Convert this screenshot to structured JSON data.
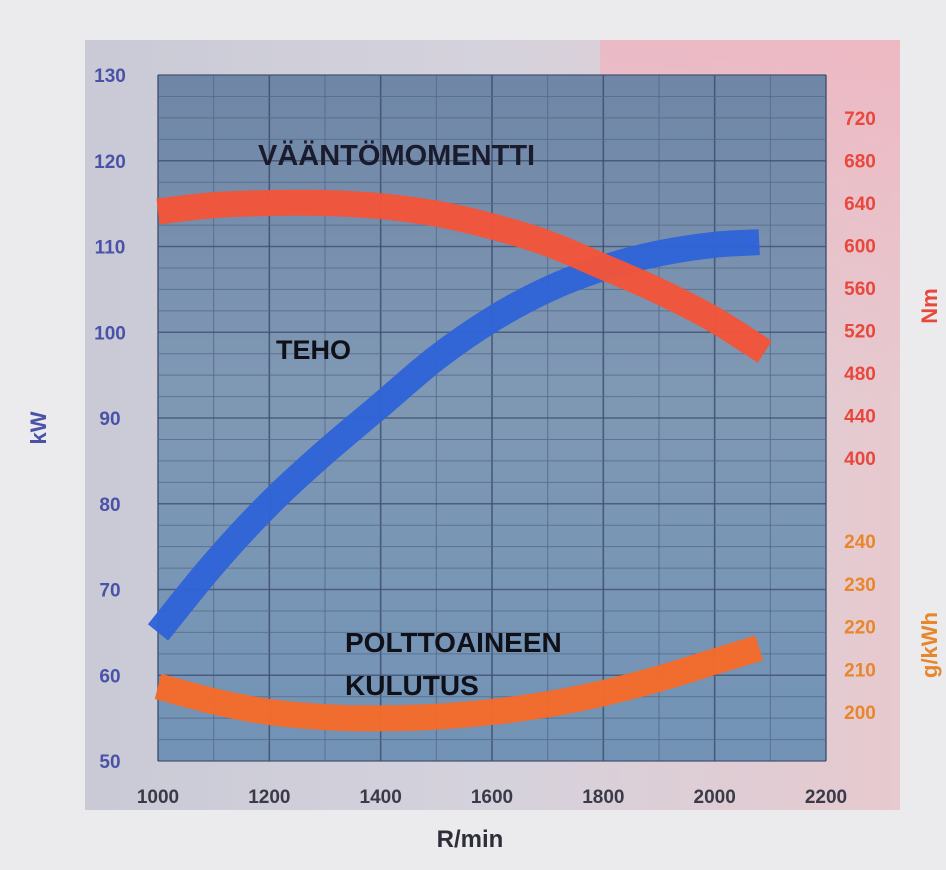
{
  "chart_data": {
    "type": "line",
    "x_label": "R/min",
    "x_ticks": [
      1000,
      1200,
      1400,
      1600,
      1800,
      2000,
      2200
    ],
    "xlim": [
      1000,
      2200
    ],
    "axes": {
      "left": {
        "label": "kW",
        "ticks": [
          50,
          60,
          70,
          80,
          90,
          100,
          110,
          120,
          130
        ],
        "range": [
          50,
          130
        ],
        "color": "#4a52a8"
      },
      "right_torque": {
        "label": "Nm",
        "ticks": [
          720,
          680,
          640,
          600,
          560,
          520,
          480,
          440,
          400
        ],
        "range": [
          400,
          720
        ],
        "color": "#e8483c"
      },
      "right_fuel": {
        "label": "g/kWh",
        "ticks": [
          240,
          230,
          220,
          210,
          200
        ],
        "range": [
          200,
          240
        ],
        "color": "#e8862c"
      }
    },
    "series": [
      {
        "name": "VÄÄNTÖMOMENTTI",
        "axis": "right_torque",
        "color": "#f2553a",
        "x": [
          1000,
          1100,
          1200,
          1300,
          1400,
          1500,
          1600,
          1700,
          1800,
          1900,
          2000,
          2090
        ],
        "y": [
          632,
          638,
          640,
          640,
          637,
          630,
          618,
          602,
          580,
          557,
          530,
          500
        ]
      },
      {
        "name": "TEHO",
        "axis": "left",
        "color": "#2f63d6",
        "x": [
          1000,
          1100,
          1200,
          1300,
          1400,
          1500,
          1600,
          1700,
          1800,
          1900,
          2000,
          2080
        ],
        "y": [
          65,
          73,
          80,
          86,
          91.5,
          97,
          101.5,
          105,
          107.5,
          109.2,
          110.2,
          110.5
        ]
      },
      {
        "name": "POLTTOAINEEN KULUTUS",
        "axis": "right_fuel",
        "color": "#f46a2a",
        "x": [
          1000,
          1100,
          1200,
          1300,
          1400,
          1500,
          1600,
          1700,
          1800,
          1900,
          2000,
          2080
        ],
        "y": [
          206,
          202.5,
          200,
          198.8,
          198.5,
          198.9,
          200,
          201.8,
          204.4,
          207.8,
          211.8,
          215
        ]
      }
    ],
    "annotations": {
      "torque": "VÄÄNTÖMOMENTTI",
      "power": "TEHO",
      "fuel_line1": "POLTTOAINEEN",
      "fuel_line2": "KULUTUS"
    },
    "grid": true
  }
}
